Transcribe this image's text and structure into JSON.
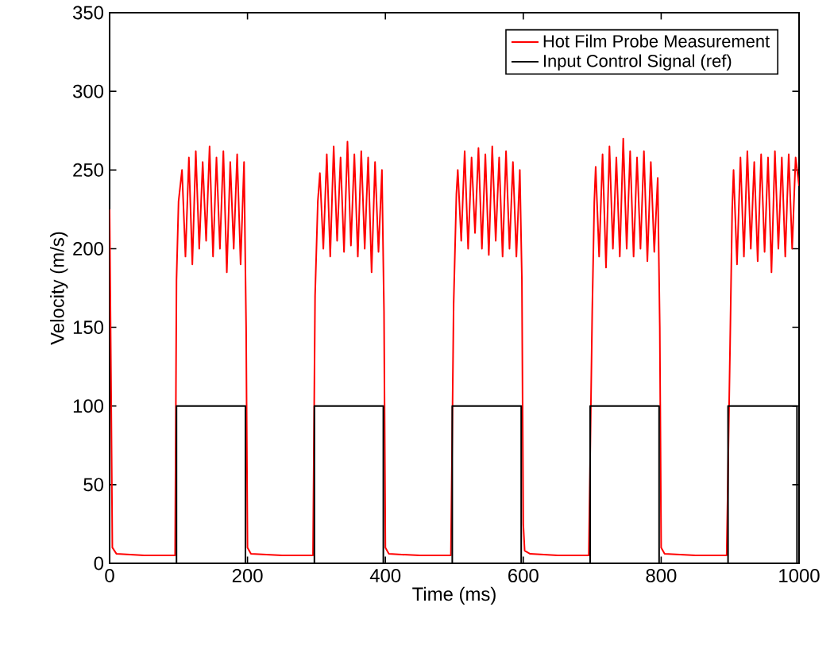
{
  "chart_data": {
    "type": "line",
    "xlabel": "Time (ms)",
    "ylabel": "Velocity (m/s)",
    "xlim": [
      0,
      1000
    ],
    "ylim": [
      0,
      350
    ],
    "xticks": [
      0,
      200,
      400,
      600,
      800,
      1000
    ],
    "yticks": [
      0,
      50,
      100,
      150,
      200,
      250,
      300,
      350
    ],
    "grid": false,
    "legend": "top right",
    "marker": "none",
    "line_style": "solid",
    "series": [
      {
        "name": "Hot Film Probe Measurement",
        "color": "#ff0000",
        "x": [
          0,
          2,
          4,
          10,
          50,
          95,
          97,
          100,
          105,
          110,
          115,
          120,
          125,
          130,
          135,
          140,
          145,
          150,
          155,
          160,
          165,
          170,
          175,
          180,
          185,
          190,
          195,
          198,
          200,
          205,
          250,
          295,
          298,
          302,
          305,
          310,
          315,
          320,
          325,
          330,
          335,
          340,
          345,
          350,
          355,
          360,
          365,
          370,
          375,
          380,
          385,
          390,
          395,
          398,
          400,
          405,
          450,
          495,
          499,
          503,
          505,
          510,
          515,
          520,
          525,
          530,
          535,
          540,
          545,
          550,
          555,
          560,
          565,
          570,
          575,
          580,
          585,
          590,
          595,
          598,
          600,
          602,
          610,
          650,
          695,
          700,
          703,
          705,
          710,
          715,
          720,
          725,
          730,
          735,
          740,
          745,
          750,
          755,
          760,
          765,
          770,
          775,
          780,
          785,
          790,
          795,
          798,
          800,
          805,
          850,
          895,
          900,
          903,
          905,
          910,
          915,
          920,
          925,
          930,
          935,
          940,
          945,
          950,
          955,
          960,
          965,
          970,
          975,
          980,
          985,
          990,
          995,
          1000
        ],
        "values": [
          225,
          120,
          10,
          6,
          5,
          5,
          180,
          230,
          250,
          195,
          258,
          190,
          262,
          200,
          255,
          205,
          265,
          195,
          258,
          200,
          262,
          185,
          255,
          200,
          260,
          190,
          255,
          150,
          10,
          6,
          5,
          5,
          170,
          230,
          248,
          200,
          260,
          195,
          265,
          205,
          258,
          198,
          268,
          202,
          260,
          195,
          262,
          200,
          258,
          185,
          255,
          198,
          250,
          160,
          10,
          6,
          5,
          5,
          165,
          235,
          250,
          205,
          262,
          200,
          258,
          210,
          264,
          200,
          260,
          196,
          265,
          205,
          258,
          195,
          262,
          200,
          255,
          195,
          250,
          180,
          25,
          8,
          6,
          5,
          5,
          160,
          230,
          252,
          195,
          260,
          188,
          265,
          200,
          258,
          195,
          270,
          200,
          262,
          195,
          258,
          200,
          262,
          192,
          255,
          198,
          245,
          150,
          10,
          6,
          5,
          5,
          140,
          225,
          250,
          190,
          258,
          195,
          262,
          200,
          255,
          192,
          260,
          198,
          258,
          185,
          262,
          200,
          258,
          195,
          260,
          200,
          258,
          240
        ]
      },
      {
        "name": "Input Control Signal (ref)",
        "color": "#000000",
        "x": [
          0,
          97,
          97,
          197,
          197,
          297,
          297,
          397,
          397,
          497,
          497,
          597,
          597,
          697,
          697,
          797,
          797,
          897,
          897,
          997,
          997,
          1000
        ],
        "values": [
          0,
          0,
          100,
          100,
          0,
          0,
          100,
          100,
          0,
          0,
          100,
          100,
          0,
          0,
          100,
          100,
          0,
          0,
          100,
          100,
          0,
          0
        ]
      }
    ]
  }
}
